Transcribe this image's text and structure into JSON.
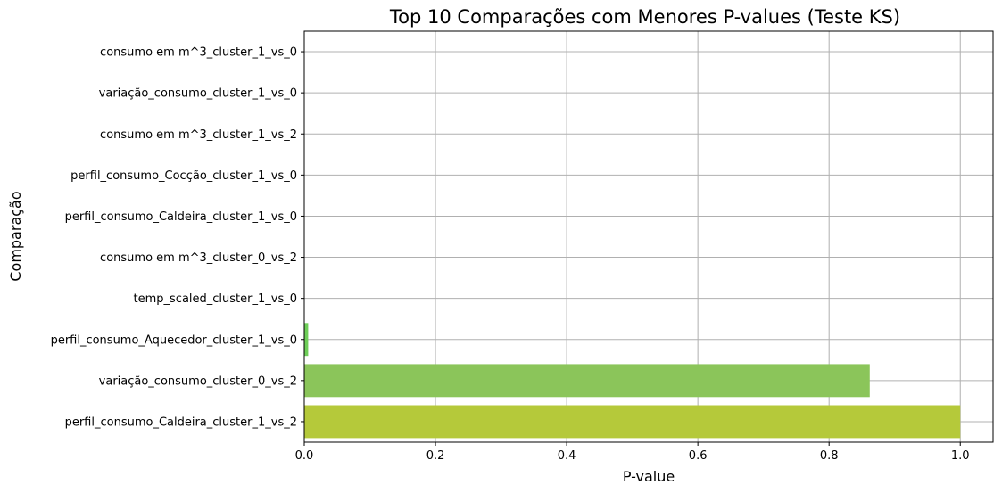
{
  "chart_data": {
    "type": "bar",
    "orientation": "horizontal",
    "title": "Top 10 Comparações com Menores P-values (Teste KS)",
    "xlabel": "P-value",
    "ylabel": "Comparação",
    "xlim": [
      0,
      1.05
    ],
    "x_ticks": [
      "0.0",
      "0.2",
      "0.4",
      "0.6",
      "0.8",
      "1.0"
    ],
    "x_tick_values": [
      0,
      0.2,
      0.4,
      0.6,
      0.8,
      1.0
    ],
    "grid": true,
    "categories": [
      "consumo em m^3_cluster_1_vs_0",
      "variação_consumo_cluster_1_vs_0",
      "consumo em m^3_cluster_1_vs_2",
      "perfil_consumo_Cocção_cluster_1_vs_0",
      "perfil_consumo_Caldeira_cluster_1_vs_0",
      "consumo em m^3_cluster_0_vs_2",
      "temp_scaled_cluster_1_vs_0",
      "perfil_consumo_Aquecedor_cluster_1_vs_0",
      "variação_consumo_cluster_0_vs_2",
      "perfil_consumo_Caldeira_cluster_1_vs_2"
    ],
    "values": [
      0.0,
      0.0,
      0.0,
      0.0,
      0.0,
      0.0,
      0.0,
      0.006,
      0.862,
      1.0
    ],
    "colors": [
      "#440154",
      "#482878",
      "#3e4989",
      "#31688e",
      "#26828e",
      "#1f9e89",
      "#35b779",
      "#6ece58",
      "#8bc55a",
      "#b5c93a"
    ]
  }
}
